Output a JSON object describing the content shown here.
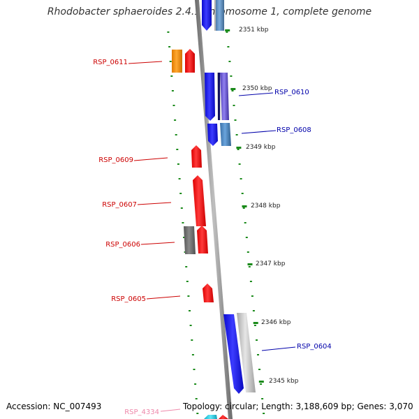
{
  "title": "Rhodobacter sphaeroides 2.4.1 chromosome 1, complete genome",
  "accession": "Accession: NC_007493",
  "topology": "Topology: circular; Length: 3,188,609 bp; Genes: 3,070",
  "kbp_labels": [
    "2351 kbp",
    "2350 kbp",
    "2349 kbp",
    "2348 kbp",
    "2347 kbp",
    "2346 kbp",
    "2345 kbp"
  ],
  "genes": [
    {
      "name": "RSP_0611",
      "strand": "reverse",
      "color": "#cc0000"
    },
    {
      "name": "RSP_0610",
      "strand": "forward",
      "color": "#0000aa"
    },
    {
      "name": "RSP_0608",
      "strand": "forward",
      "color": "#0000aa"
    },
    {
      "name": "RSP_0609",
      "strand": "reverse",
      "color": "#cc0000"
    },
    {
      "name": "RSP_0607",
      "strand": "reverse",
      "color": "#cc0000"
    },
    {
      "name": "RSP_0606",
      "strand": "reverse",
      "color": "#cc0000"
    },
    {
      "name": "RSP_0605",
      "strand": "reverse",
      "color": "#cc0000"
    },
    {
      "name": "RSP_0604",
      "strand": "forward",
      "color": "#0000aa"
    },
    {
      "name": "RSP_4334",
      "strand": "reverse",
      "color": "#ee88aa"
    }
  ],
  "colors": {
    "backbone": "#8a8a8a",
    "tick": "#1a8a1a",
    "forward_gene": "#1010ee",
    "reverse_gene": "#ee1111",
    "orange_gene": "#f08a00",
    "steel_gene": "#4a86c0",
    "gray_gene": "#777777",
    "light_gene": "#c8c8c8",
    "cyan_gene": "#22ccdd",
    "violet_gene": "#7060d0"
  }
}
